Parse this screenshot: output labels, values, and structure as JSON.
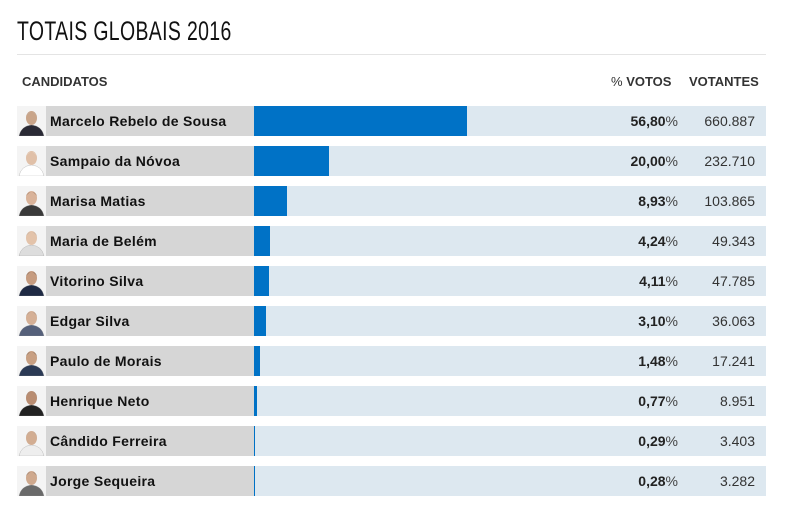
{
  "title": "TOTAIS GLOBAIS 2016",
  "headers": {
    "candidates": "CANDIDATOS",
    "pct_symbol": "%",
    "votes_pct": "VOTOS",
    "voters": "VOTANTES"
  },
  "colors": {
    "bar": "#0072c6",
    "track": "#dde8f0",
    "name_bg": "#d6d6d6"
  },
  "chart_data": {
    "type": "bar",
    "orientation": "horizontal",
    "categories": [
      "Marcelo Rebelo de Sousa",
      "Sampaio da Nóvoa",
      "Marisa Matias",
      "Maria de Belém",
      "Vitorino Silva",
      "Edgar Silva",
      "Paulo de Morais",
      "Henrique Neto",
      "Cândido Ferreira",
      "Jorge Sequeira"
    ],
    "values": [
      56.8,
      20.0,
      8.93,
      4.24,
      4.11,
      3.1,
      1.48,
      0.77,
      0.29,
      0.28
    ],
    "xlim": [
      0,
      100
    ]
  },
  "rows": [
    {
      "name": "Marcelo Rebelo de Sousa",
      "pct": "56,80",
      "unit": "%",
      "votes": "660.887"
    },
    {
      "name": "Sampaio da Nóvoa",
      "pct": "20,00",
      "unit": "%",
      "votes": "232.710"
    },
    {
      "name": "Marisa Matias",
      "pct": "8,93",
      "unit": "%",
      "votes": "103.865"
    },
    {
      "name": "Maria de Belém",
      "pct": "4,24",
      "unit": "%",
      "votes": "49.343"
    },
    {
      "name": "Vitorino Silva",
      "pct": "4,11",
      "unit": "%",
      "votes": "47.785"
    },
    {
      "name": "Edgar Silva",
      "pct": "3,10",
      "unit": "%",
      "votes": "36.063"
    },
    {
      "name": "Paulo de Morais",
      "pct": "1,48",
      "unit": "%",
      "votes": "17.241"
    },
    {
      "name": "Henrique Neto",
      "pct": "0,77",
      "unit": "%",
      "votes": "8.951"
    },
    {
      "name": "Cândido Ferreira",
      "pct": "0,29",
      "unit": "%",
      "votes": "3.403"
    },
    {
      "name": "Jorge Sequeira",
      "pct": "0,28",
      "unit": "%",
      "votes": "3.282"
    }
  ]
}
